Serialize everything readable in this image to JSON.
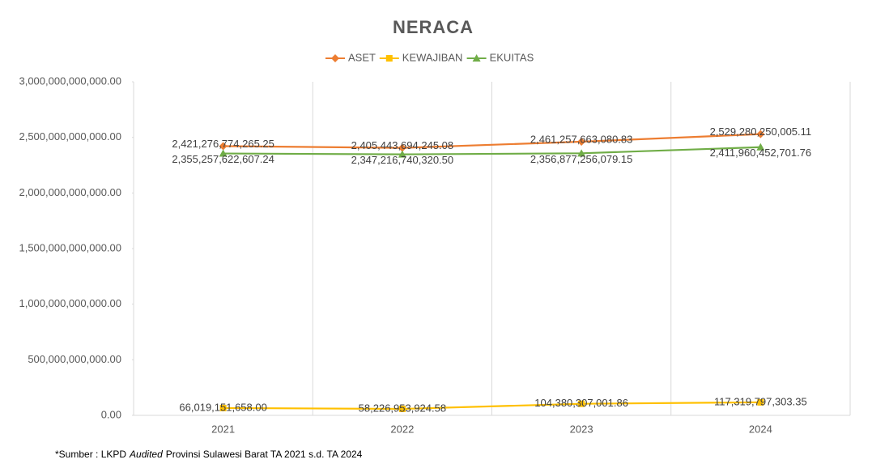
{
  "chart_data": {
    "type": "line",
    "title": "NERACA",
    "categories": [
      "2021",
      "2022",
      "2023",
      "2024"
    ],
    "series": [
      {
        "name": "ASET",
        "color": "#ED7D31",
        "marker": "diamond",
        "values": [
          2421276774265.25,
          2405443694245.08,
          2461257663080.83,
          2529280250005.11
        ],
        "value_labels": [
          "2,421,276,774,265.25",
          "2,405,443,694,245.08",
          "2,461,257,663,080.83",
          "2,529,280,250,005.11"
        ]
      },
      {
        "name": "KEWAJIBAN",
        "color": "#FFC000",
        "marker": "square",
        "values": [
          66019151658.0,
          58226953924.58,
          104380307001.86,
          117319797303.35
        ],
        "value_labels": [
          "66,019,151,658.00",
          "58,226,953,924.58",
          "104,380,307,001.86",
          "117,319,797,303.35"
        ]
      },
      {
        "name": "EKUITAS",
        "color": "#70AD47",
        "marker": "triangle",
        "values": [
          2355257622607.24,
          2347216740320.5,
          2356877256079.15,
          2411960452701.76
        ],
        "value_labels": [
          "2,355,257,622,607.24",
          "2,347,216,740,320.50",
          "2,356,877,256,079.15",
          "2,411,960,452,701.76"
        ]
      }
    ],
    "ylim": [
      0,
      3000000000000
    ],
    "yticks": [
      {
        "value": 0,
        "label": "0.00"
      },
      {
        "value": 500000000000,
        "label": "500,000,000,000.00"
      },
      {
        "value": 1000000000000,
        "label": "1,000,000,000,000.00"
      },
      {
        "value": 1500000000000,
        "label": "1,500,000,000,000.00"
      },
      {
        "value": 2000000000000,
        "label": "2,000,000,000,000.00"
      },
      {
        "value": 2500000000000,
        "label": "2,500,000,000,000.00"
      },
      {
        "value": 3000000000000,
        "label": "3,000,000,000,000.00"
      }
    ],
    "legend": "top",
    "source": [
      "*Sumber : LKPD",
      "Audited",
      "Provinsi Sulawesi Barat TA 2021 s.d. TA 2024"
    ]
  }
}
